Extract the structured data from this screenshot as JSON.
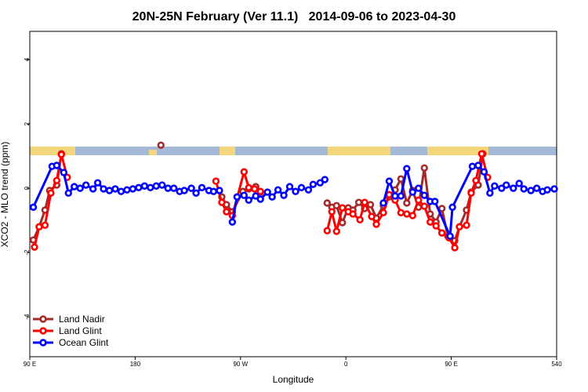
{
  "chart_data": {
    "type": "line",
    "title": "20N-25N February (Ver 11.1)   2014-09-06 to 2023-04-30",
    "x_label": "Longitude",
    "y_label": "XCO2 - MLO trend (ppm)",
    "xlim": [
      90,
      540
    ],
    "ylim": [
      -5.24,
      4.88
    ],
    "xticks": [
      {
        "value": 90,
        "label": "90 E"
      },
      180,
      {
        "value": 270,
        "label": "90 W"
      },
      {
        "value": 360,
        "label": "0"
      },
      {
        "value": 450,
        "label": "90 E"
      },
      540
    ],
    "yticks": [
      -4,
      -2,
      0,
      2,
      4
    ],
    "grid": false,
    "legend": "bottom-left",
    "series": [
      {
        "name": "Land Nadir",
        "color": "#a52a2a",
        "x": [
          93,
          98,
          103,
          107,
          113,
          117,
          null,
          202,
          null,
          254,
          258,
          263,
          272,
          277,
          283,
          287,
          null,
          344,
          348,
          352,
          357,
          362,
          366,
          371,
          376,
          381,
          386,
          392,
          397,
          402,
          407,
          412,
          417,
          422,
          427,
          432,
          437,
          442,
          447,
          453,
          457,
          463,
          467,
          473,
          477
        ],
        "values": [
          -1.61,
          -1.2,
          -0.68,
          -0.07,
          0.1,
          1.07,
          null,
          1.34,
          null,
          -0.27,
          -0.51,
          -0.73,
          -0.1,
          -0.02,
          0.05,
          -0.12,
          null,
          -0.46,
          -0.59,
          -0.54,
          -1.07,
          -0.61,
          -0.68,
          -0.44,
          -0.63,
          -0.51,
          -0.93,
          -0.54,
          -0.27,
          -0.05,
          0.29,
          -0.46,
          -0.07,
          -0.59,
          0.63,
          -0.8,
          -1.05,
          -0.63,
          -1.49,
          -1.63,
          -1.2,
          -0.68,
          -0.12,
          0.1,
          1.07
        ]
      },
      {
        "name": "Land Glint",
        "color": "#ff0000",
        "x": [
          94,
          98,
          103,
          108,
          113,
          117,
          122,
          null,
          249,
          254,
          258,
          263,
          273,
          277,
          282,
          287,
          null,
          344,
          348,
          352,
          357,
          362,
          366,
          372,
          376,
          382,
          386,
          392,
          397,
          402,
          407,
          412,
          417,
          422,
          427,
          432,
          437,
          442,
          448,
          453,
          457,
          463,
          467,
          471,
          476,
          481
        ],
        "values": [
          -1.83,
          -1.2,
          -1.15,
          -0.15,
          0.24,
          1.05,
          0.34,
          null,
          0.22,
          -0.44,
          -0.73,
          -0.85,
          0.51,
          0.02,
          -0.02,
          -0.1,
          null,
          -1.32,
          -0.73,
          -1.34,
          -0.61,
          -0.73,
          -0.8,
          -0.98,
          -0.44,
          -0.88,
          -1.12,
          -0.76,
          -0.2,
          -0.37,
          -0.76,
          -0.8,
          -0.85,
          -0.37,
          -0.56,
          -1.05,
          -1.17,
          -1.39,
          -1.54,
          -1.85,
          -1.2,
          -1.15,
          -0.15,
          0.24,
          1.07,
          0.34
        ]
      },
      {
        "name": "Ocean Glint",
        "color": "#0000ff",
        "x": [
          93,
          109,
          113,
          119,
          123,
          128,
          133,
          138,
          144,
          148,
          153,
          158,
          163,
          168,
          173,
          178,
          183,
          188,
          193,
          198,
          203,
          208,
          213,
          218,
          222,
          228,
          232,
          237,
          243,
          247,
          252,
          null,
          263,
          267,
          273,
          277,
          283,
          287,
          293,
          297,
          302,
          307,
          312,
          317,
          322,
          328,
          332,
          338,
          342,
          null,
          392,
          397,
          402,
          407,
          412,
          417,
          422,
          427,
          432,
          436,
          449,
          451,
          468,
          473,
          478,
          483,
          487,
          493,
          497,
          503,
          508,
          512,
          518,
          523,
          528,
          532,
          538
        ],
        "values": [
          -0.59,
          0.68,
          0.71,
          0.49,
          -0.15,
          0.05,
          0,
          0.1,
          -0.02,
          0.17,
          -0.02,
          -0.07,
          -0.02,
          -0.1,
          -0.05,
          -0.02,
          0.02,
          0.07,
          0.02,
          0.07,
          0.1,
          0,
          0,
          -0.1,
          -0.07,
          0,
          -0.15,
          0.02,
          -0.07,
          -0.1,
          -0.07,
          null,
          -1.05,
          -0.27,
          -0.22,
          -0.37,
          -0.24,
          -0.34,
          -0.12,
          -0.27,
          -0.05,
          -0.22,
          0.05,
          -0.1,
          0.02,
          -0.05,
          0.12,
          0.17,
          0.27,
          null,
          -0.46,
          0.22,
          -0.24,
          -0.24,
          0.61,
          -0.12,
          0,
          -0.22,
          -0.41,
          -0.41,
          -1.49,
          -0.59,
          0.68,
          0.71,
          0.51,
          -0.15,
          0.07,
          0,
          0.1,
          0,
          0.15,
          -0.02,
          -0.07,
          0,
          -0.1,
          -0.05,
          -0.02
        ]
      }
    ]
  }
}
